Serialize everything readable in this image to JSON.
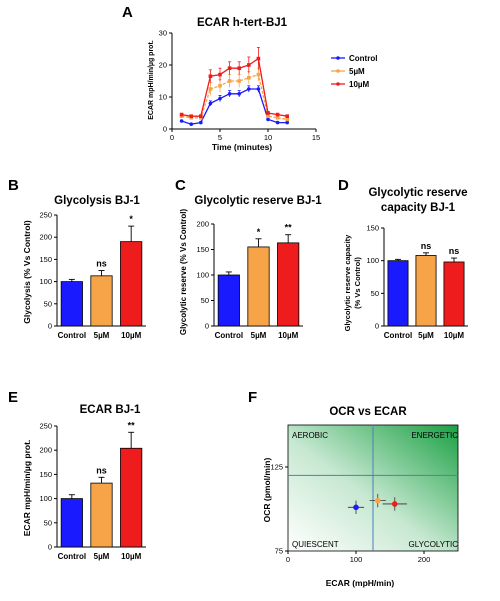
{
  "panels": {
    "A": {
      "letter": "A"
    },
    "B": {
      "letter": "B"
    },
    "C": {
      "letter": "C"
    },
    "D": {
      "letter": "D"
    },
    "E": {
      "letter": "E"
    },
    "F": {
      "letter": "F"
    }
  },
  "colors": {
    "control": "#1a1aff",
    "low": "#f7a348",
    "high": "#ee1c1c"
  },
  "chart_data": [
    {
      "id": "A",
      "type": "line",
      "title": "ECAR  h-tert-BJ1",
      "xlabel": "Time (minutes)",
      "ylabel": "ECAR mpH/min/µg prot.",
      "xlim": [
        0,
        15
      ],
      "ylim": [
        0,
        30
      ],
      "xticks": [
        "0",
        "5",
        "10",
        "15"
      ],
      "yticks": [
        "0",
        "10",
        "20",
        "30"
      ],
      "x": [
        1,
        2,
        3,
        4,
        5,
        6,
        7,
        8,
        9,
        10,
        11,
        12
      ],
      "series": [
        {
          "name": "Control",
          "values": [
            2.5,
            1.5,
            2,
            8,
            9.5,
            11,
            11,
            12.5,
            12.5,
            3,
            2,
            2
          ],
          "err": [
            0.3,
            0.3,
            0.3,
            0.8,
            1,
            1,
            1,
            1,
            1,
            0.4,
            0.3,
            0.3
          ]
        },
        {
          "name": "5µM",
          "values": [
            4,
            3.5,
            3.5,
            12.5,
            13.5,
            15,
            15,
            16,
            17,
            4,
            3.5,
            3
          ],
          "err": [
            0.3,
            0.3,
            0.3,
            2,
            2,
            2,
            2,
            2,
            2,
            0.4,
            0.3,
            0.3
          ]
        },
        {
          "name": "10µM",
          "values": [
            4.5,
            4,
            4,
            16.5,
            17,
            19,
            19,
            20,
            22,
            5,
            4.5,
            4
          ],
          "err": [
            0.4,
            0.4,
            0.4,
            2,
            2,
            2,
            2,
            2.5,
            3.5,
            0.5,
            0.4,
            0.4
          ]
        }
      ]
    },
    {
      "id": "B",
      "type": "bar",
      "title": "Glycolysis BJ-1",
      "ylabel": "Glycolysis (% Vs Control)",
      "ylim": [
        0,
        250
      ],
      "yticks": [
        "0",
        "50",
        "100",
        "150",
        "200",
        "250"
      ],
      "categories": [
        "Control",
        "5µM",
        "10µM"
      ],
      "values": [
        100,
        113,
        190
      ],
      "err": [
        5,
        12,
        35
      ],
      "sig": [
        "",
        "ns",
        "*"
      ]
    },
    {
      "id": "C",
      "type": "bar",
      "title": "Glycolytic reserve BJ-1",
      "ylabel": "Glycolytic reserve (% Vs Control)",
      "ylim": [
        0,
        200
      ],
      "yticks": [
        "0",
        "50",
        "100",
        "150",
        "200"
      ],
      "categories": [
        "Control",
        "5µM",
        "10µM"
      ],
      "values": [
        100,
        155,
        163
      ],
      "err": [
        6,
        16,
        16
      ],
      "sig": [
        "",
        "*",
        "**"
      ]
    },
    {
      "id": "D",
      "type": "bar",
      "title": "Glycolytic reserve capacity BJ-1",
      "title_lines": [
        "Glycolytic reserve",
        "capacity BJ-1"
      ],
      "ylabel": "Glycolytic reserve capacity (% Vs Control)",
      "ylabel_lines": [
        "Glycolytic reserve capacity",
        "(% Vs Control)"
      ],
      "ylim": [
        0,
        150
      ],
      "yticks": [
        "0",
        "50",
        "100",
        "150"
      ],
      "categories": [
        "Control",
        "5µM",
        "10µM"
      ],
      "values": [
        100,
        108,
        98
      ],
      "err": [
        2,
        4,
        6
      ],
      "sig": [
        "",
        "ns",
        "ns"
      ]
    },
    {
      "id": "E",
      "type": "bar",
      "title": "ECAR BJ-1",
      "ylabel": "ECAR mpH/min/µg prot.",
      "ylim": [
        0,
        250
      ],
      "yticks": [
        "0",
        "50",
        "100",
        "150",
        "200",
        "250"
      ],
      "categories": [
        "Control",
        "5µM",
        "10µM"
      ],
      "values": [
        100,
        132,
        204
      ],
      "err": [
        8,
        12,
        33
      ],
      "sig": [
        "",
        "ns",
        "**"
      ]
    },
    {
      "id": "F",
      "type": "scatter",
      "title": "OCR vs ECAR",
      "xlabel": "ECAR (mpH/min)",
      "ylabel": "OCR (pmol/min)",
      "xlim": [
        0,
        250
      ],
      "ylim": [
        75,
        150
      ],
      "xticks": [
        "0",
        "100",
        "200"
      ],
      "yticks": [
        "75",
        "125"
      ],
      "quadrants": {
        "tl": "AEROBIC",
        "tr": "ENERGETIC",
        "bl": "QUIESCENT",
        "br": "GLYCOLYTIC"
      },
      "crosshair": {
        "x": 125,
        "y": 120
      },
      "points": [
        {
          "x": 100,
          "y": 101,
          "xerr": 12,
          "yerr": 4
        },
        {
          "x": 132,
          "y": 105,
          "xerr": 12,
          "yerr": 4
        },
        {
          "x": 157,
          "y": 103,
          "xerr": 18,
          "yerr": 4
        }
      ]
    }
  ]
}
